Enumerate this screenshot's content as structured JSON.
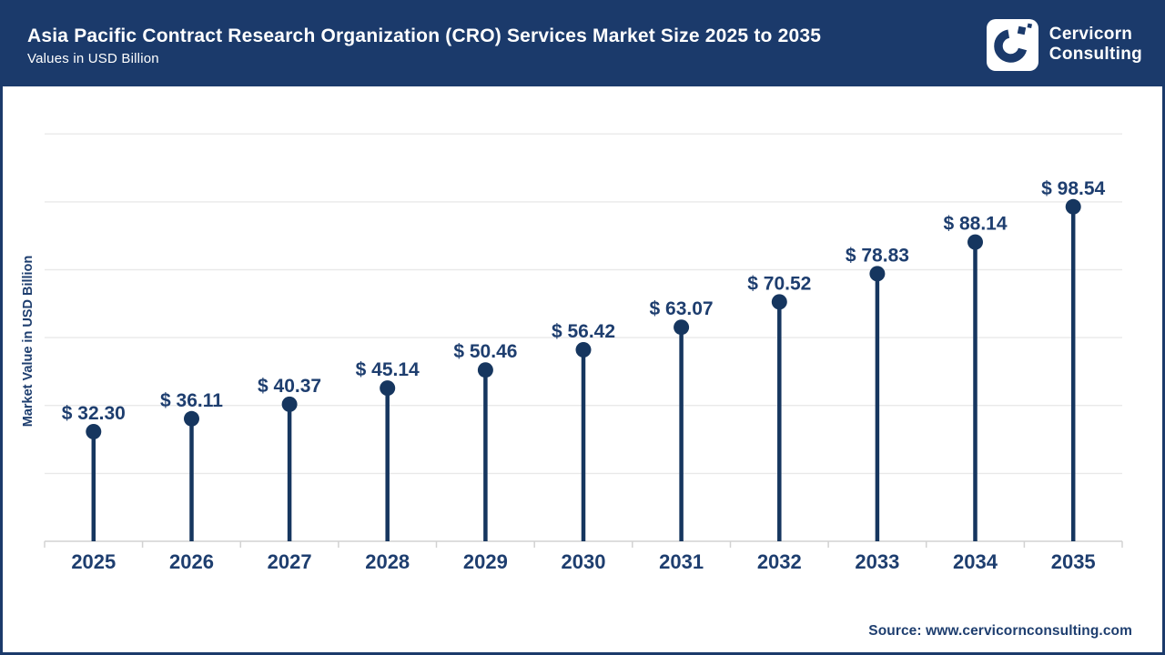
{
  "header": {
    "title": "Asia Pacific Contract Research Organization (CRO) Services Market Size 2025 to 2035",
    "subtitle": "Values in USD Billion",
    "brand": {
      "line1": "Cervicorn",
      "line2": "Consulting",
      "logo_icon": "cervicorn-c-icon"
    }
  },
  "chart_data": {
    "type": "bar",
    "variant": "lollipop",
    "title": "Asia Pacific Contract Research Organization (CRO) Services Market Size 2025 to 2035",
    "subtitle": "Values in USD Billion",
    "categories": [
      "2025",
      "2026",
      "2027",
      "2028",
      "2029",
      "2030",
      "2031",
      "2032",
      "2033",
      "2034",
      "2035"
    ],
    "values": [
      32.3,
      36.11,
      40.37,
      45.14,
      50.46,
      56.42,
      63.07,
      70.52,
      78.83,
      88.14,
      98.54
    ],
    "value_labels": [
      "$ 32.30",
      "$ 36.11",
      "$ 40.37",
      "$ 45.14",
      "$ 50.46",
      "$ 56.42",
      "$ 63.07",
      "$ 70.52",
      "$ 78.83",
      "$ 88.14",
      "$ 98.54"
    ],
    "value_prefix": "$ ",
    "xlabel": "",
    "ylabel": "Market Value in USD Billion",
    "ylim": [
      0,
      134
    ],
    "grid_interval": 20,
    "grid": true,
    "legend": false,
    "y_tick_labels_visible": false
  },
  "footer": {
    "source": "Source: www.cervicornconsulting.com"
  },
  "colors": {
    "navy": "#1b3a6b",
    "stem": "#16365f",
    "marker": "#16365f",
    "label_text": "#1e3e6f",
    "gridline": "#e9e9e9",
    "axis_line": "#d2d2d2",
    "background": "#ffffff",
    "header_text": "#ffffff"
  }
}
